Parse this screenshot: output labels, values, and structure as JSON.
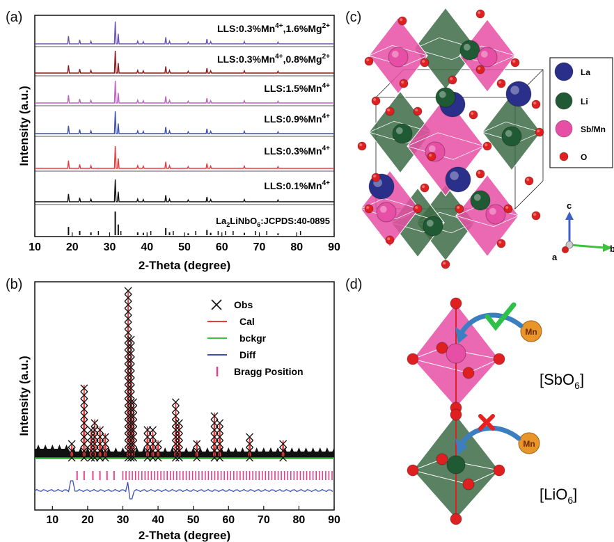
{
  "panels": {
    "a": {
      "label": "(a)",
      "xlabel": "2-Theta (degree)",
      "ylabel": "Intensity (a.u.)",
      "xticks": [
        10,
        20,
        30,
        40,
        50,
        60,
        70,
        80,
        90
      ],
      "xlim": [
        10,
        90
      ],
      "traces": [
        {
          "label": "LLS:0.3%Mn4+,1.6%Mg2+",
          "base": "LLS:0.3%Mn",
          "sup1": "4+",
          "mid": ",1.6%Mg",
          "sup2": "2+",
          "color": "#6a52b5"
        },
        {
          "label": "LLS:0.3%Mn4+,0.8%Mg2+",
          "base": "LLS:0.3%Mn",
          "sup1": "4+",
          "mid": ",0.8%Mg",
          "sup2": "2+",
          "color": "#8b1a1a"
        },
        {
          "label": "LLS:1.5%Mn4+",
          "base": "LLS:1.5%Mn",
          "sup1": "4+",
          "mid": "",
          "sup2": "",
          "color": "#c060c0"
        },
        {
          "label": "LLS:0.9%Mn4+",
          "base": "LLS:0.9%Mn",
          "sup1": "4+",
          "mid": "",
          "sup2": "",
          "color": "#3c50b0"
        },
        {
          "label": "LLS:0.3%Mn4+",
          "base": "LLS:0.3%Mn",
          "sup1": "4+",
          "mid": "",
          "sup2": "",
          "color": "#e83a3a"
        },
        {
          "label": "LLS:0.1%Mn4+",
          "base": "LLS:0.1%Mn",
          "sup1": "4+",
          "mid": "",
          "sup2": "",
          "color": "#111111"
        }
      ],
      "reference": {
        "label": "La2LiNbO6:JCPDS:40-0895",
        "p1": "La",
        "sub": "2",
        "p2": "LiNbO",
        "sub2": "6",
        "p3": ":JCPDS:40-0895",
        "color": "#111111"
      },
      "peaks": [
        {
          "x": 19.0,
          "h": 0.35
        },
        {
          "x": 22.0,
          "h": 0.18
        },
        {
          "x": 25.0,
          "h": 0.12
        },
        {
          "x": 31.5,
          "h": 1.0
        },
        {
          "x": 32.3,
          "h": 0.45
        },
        {
          "x": 37.5,
          "h": 0.12
        },
        {
          "x": 39.0,
          "h": 0.1
        },
        {
          "x": 45.0,
          "h": 0.3
        },
        {
          "x": 46.0,
          "h": 0.12
        },
        {
          "x": 51.0,
          "h": 0.08
        },
        {
          "x": 56.0,
          "h": 0.22
        },
        {
          "x": 57.0,
          "h": 0.1
        },
        {
          "x": 66.0,
          "h": 0.1
        },
        {
          "x": 75.0,
          "h": 0.08
        }
      ]
    },
    "b": {
      "label": "(b)",
      "xlabel": "2-Theta (degree)",
      "ylabel": "Intensity (a.u.)",
      "xticks": [
        10,
        20,
        30,
        40,
        50,
        60,
        70,
        80,
        90
      ],
      "xlim": [
        5,
        90
      ],
      "legend": [
        {
          "label": "Obs",
          "color": "#111111",
          "marker": "x"
        },
        {
          "label": "Cal",
          "color": "#e83a3a",
          "marker": "line"
        },
        {
          "label": "bckgr",
          "color": "#3fbf3f",
          "marker": "line"
        },
        {
          "label": "Diff",
          "color": "#3c50b0",
          "marker": "line"
        },
        {
          "label": "Bragg Position",
          "color": "#e0408a",
          "marker": "tick"
        }
      ]
    },
    "c": {
      "label": "(c)",
      "legend": [
        {
          "label": "La",
          "color": "#2a2f8a"
        },
        {
          "label": "Li",
          "color": "#1f5a35"
        },
        {
          "label": "Sb/Mn",
          "color": "#e64fa5"
        },
        {
          "label": "O",
          "color": "#e02020"
        }
      ],
      "axes": {
        "c": "c",
        "a": "a",
        "b": "b"
      }
    },
    "d": {
      "label": "(d)",
      "sb": {
        "text": "[SbO",
        "sub": "6",
        "end": "]"
      },
      "li": {
        "text": "[LiO",
        "sub": "6",
        "end": "]"
      },
      "mn": "Mn"
    }
  },
  "colors": {
    "pink_oct": "#e64fa5",
    "green_oct": "#3d6b45",
    "oxygen": "#e02020",
    "la": "#2a2f8a",
    "li": "#1f5a35",
    "mn": "#e8962a"
  }
}
